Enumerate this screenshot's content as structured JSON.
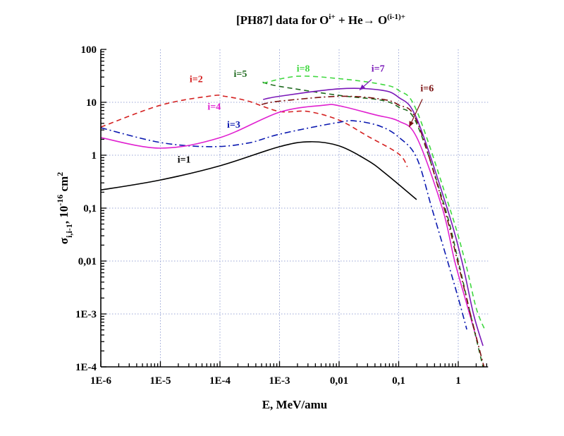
{
  "chart_data": {
    "type": "line",
    "title": {
      "prefix": "[PH87] data for  O",
      "sup1": "i+",
      "middle": " + He→ O",
      "sup2": "(i-1)+"
    },
    "xlabel": "E, MeV/amu",
    "ylabel": {
      "main": "σ",
      "sub": "i,i-1",
      "unit_prefix": ", 10",
      "unit_sup": "-16",
      "unit": " cm",
      "unit_sup2": "2"
    },
    "xscale": "log",
    "yscale": "log",
    "xlim": [
      1e-06,
      3
    ],
    "ylim": [
      0.0001,
      100
    ],
    "grid": true,
    "x_ticks": [
      {
        "value": 1e-06,
        "label": "1E-6"
      },
      {
        "value": 1e-05,
        "label": "1E-5"
      },
      {
        "value": 0.0001,
        "label": "1E-4"
      },
      {
        "value": 0.001,
        "label": "1E-3"
      },
      {
        "value": 0.01,
        "label": "0,01"
      },
      {
        "value": 0.1,
        "label": "0,1"
      },
      {
        "value": 1,
        "label": "1"
      }
    ],
    "y_ticks": [
      {
        "value": 0.0001,
        "label": "1E-4"
      },
      {
        "value": 0.001,
        "label": "1E-3"
      },
      {
        "value": 0.01,
        "label": "0,01"
      },
      {
        "value": 0.1,
        "label": "0,1"
      },
      {
        "value": 1,
        "label": "1"
      },
      {
        "value": 10,
        "label": "10"
      },
      {
        "value": 100,
        "label": "100"
      }
    ],
    "series": [
      {
        "name": "i=1",
        "color": "#000000",
        "style": "solid",
        "points": [
          [
            1e-06,
            0.22
          ],
          [
            1e-05,
            0.34
          ],
          [
            0.0001,
            0.63
          ],
          [
            0.001,
            1.45
          ],
          [
            0.0033,
            1.8
          ],
          [
            0.01,
            1.5
          ],
          [
            0.03,
            0.8
          ],
          [
            0.06,
            0.45
          ],
          [
            0.2,
            0.145
          ]
        ],
        "label_at": [
          2.5e-05,
          0.72
        ]
      },
      {
        "name": "i=2",
        "color": "#d42020",
        "style": "dashed",
        "points": [
          [
            1e-06,
            3.4
          ],
          [
            1e-05,
            8.8
          ],
          [
            7e-05,
            13.2
          ],
          [
            0.00012,
            13
          ],
          [
            0.0003,
            10.5
          ],
          [
            0.001,
            6.7
          ],
          [
            0.003,
            6.7
          ],
          [
            0.01,
            4.6
          ],
          [
            0.03,
            2.3
          ],
          [
            0.1,
            1.06
          ],
          [
            0.14,
            0.6
          ]
        ],
        "label_at": [
          4e-05,
          24
        ]
      },
      {
        "name": "i=3",
        "color": "#0a18b0",
        "style": "dashdot",
        "points": [
          [
            1e-06,
            3.3
          ],
          [
            1e-05,
            1.74
          ],
          [
            7e-05,
            1.45
          ],
          [
            0.0003,
            1.7
          ],
          [
            0.001,
            2.5
          ],
          [
            0.01,
            4.2
          ],
          [
            0.02,
            4.4
          ],
          [
            0.05,
            3.5
          ],
          [
            0.1,
            2.2
          ],
          [
            0.2,
            0.9
          ],
          [
            0.36,
            0.1
          ],
          [
            0.66,
            0.01
          ],
          [
            1.0,
            0.002
          ],
          [
            1.39,
            0.00051
          ]
        ],
        "label_at": [
          0.00017,
          3.3
        ]
      },
      {
        "name": "i=4",
        "color": "#e020d0",
        "style": "solid",
        "points": [
          [
            1e-06,
            2.15
          ],
          [
            1e-05,
            1.36
          ],
          [
            0.0001,
            2.15
          ],
          [
            0.001,
            6.5
          ],
          [
            0.0055,
            8.8
          ],
          [
            0.01,
            8.6
          ],
          [
            0.04,
            5.8
          ],
          [
            0.1,
            4.4
          ],
          [
            0.2,
            2.2
          ],
          [
            0.54,
            0.1
          ],
          [
            0.87,
            0.01
          ],
          [
            1.4,
            0.0015
          ],
          [
            2.1,
            0.0003
          ]
        ],
        "label_at": [
          8e-05,
          7.2
        ]
      },
      {
        "name": "i=5",
        "color": "#1e6a1e",
        "style": "dashed",
        "points": [
          [
            0.00052,
            24
          ],
          [
            0.001,
            20
          ],
          [
            0.01,
            13.5
          ],
          [
            0.05,
            11
          ],
          [
            0.1,
            8.1
          ],
          [
            0.2,
            4
          ],
          [
            0.6,
            0.1
          ],
          [
            1.0,
            0.01
          ],
          [
            1.6,
            0.001
          ],
          [
            2.6,
            0.0001
          ]
        ],
        "label_at": [
          0.00022,
          30
        ]
      },
      {
        "name": "i=6",
        "color": "#7a1010",
        "style": "dashdot",
        "points": [
          [
            0.0005,
            9.1
          ],
          [
            0.001,
            10.5
          ],
          [
            0.01,
            13
          ],
          [
            0.05,
            11.5
          ],
          [
            0.1,
            8.9
          ],
          [
            0.2,
            4.5
          ],
          [
            0.58,
            0.1
          ],
          [
            0.97,
            0.01
          ],
          [
            1.6,
            0.001
          ],
          [
            2.7,
            0.0001
          ]
        ],
        "label_at": [
          0.3,
          16
        ],
        "arrow": [
          [
            0.25,
            11.5
          ],
          [
            0.15,
            3.4
          ]
        ]
      },
      {
        "name": "i=7",
        "color": "#7a18b8",
        "style": "solid",
        "points": [
          [
            0.00053,
            11.3
          ],
          [
            0.001,
            13
          ],
          [
            0.01,
            18
          ],
          [
            0.05,
            17
          ],
          [
            0.1,
            12.4
          ],
          [
            0.2,
            5
          ],
          [
            0.65,
            0.1
          ],
          [
            1.15,
            0.01
          ],
          [
            1.8,
            0.001
          ],
          [
            2.6,
            0.00025
          ]
        ],
        "label_at": [
          0.045,
          38
        ],
        "arrow": [
          [
            0.035,
            27
          ],
          [
            0.022,
            17
          ]
        ]
      },
      {
        "name": "i=8",
        "color": "#40d840",
        "style": "dashed",
        "points": [
          [
            0.00053,
            23
          ],
          [
            0.002,
            31
          ],
          [
            0.01,
            28
          ],
          [
            0.05,
            22
          ],
          [
            0.1,
            16.8
          ],
          [
            0.2,
            7
          ],
          [
            0.72,
            0.1
          ],
          [
            1.3,
            0.01
          ],
          [
            2.0,
            0.0013
          ],
          [
            2.8,
            0.0005
          ]
        ],
        "label_at": [
          0.0025,
          38
        ]
      }
    ]
  }
}
